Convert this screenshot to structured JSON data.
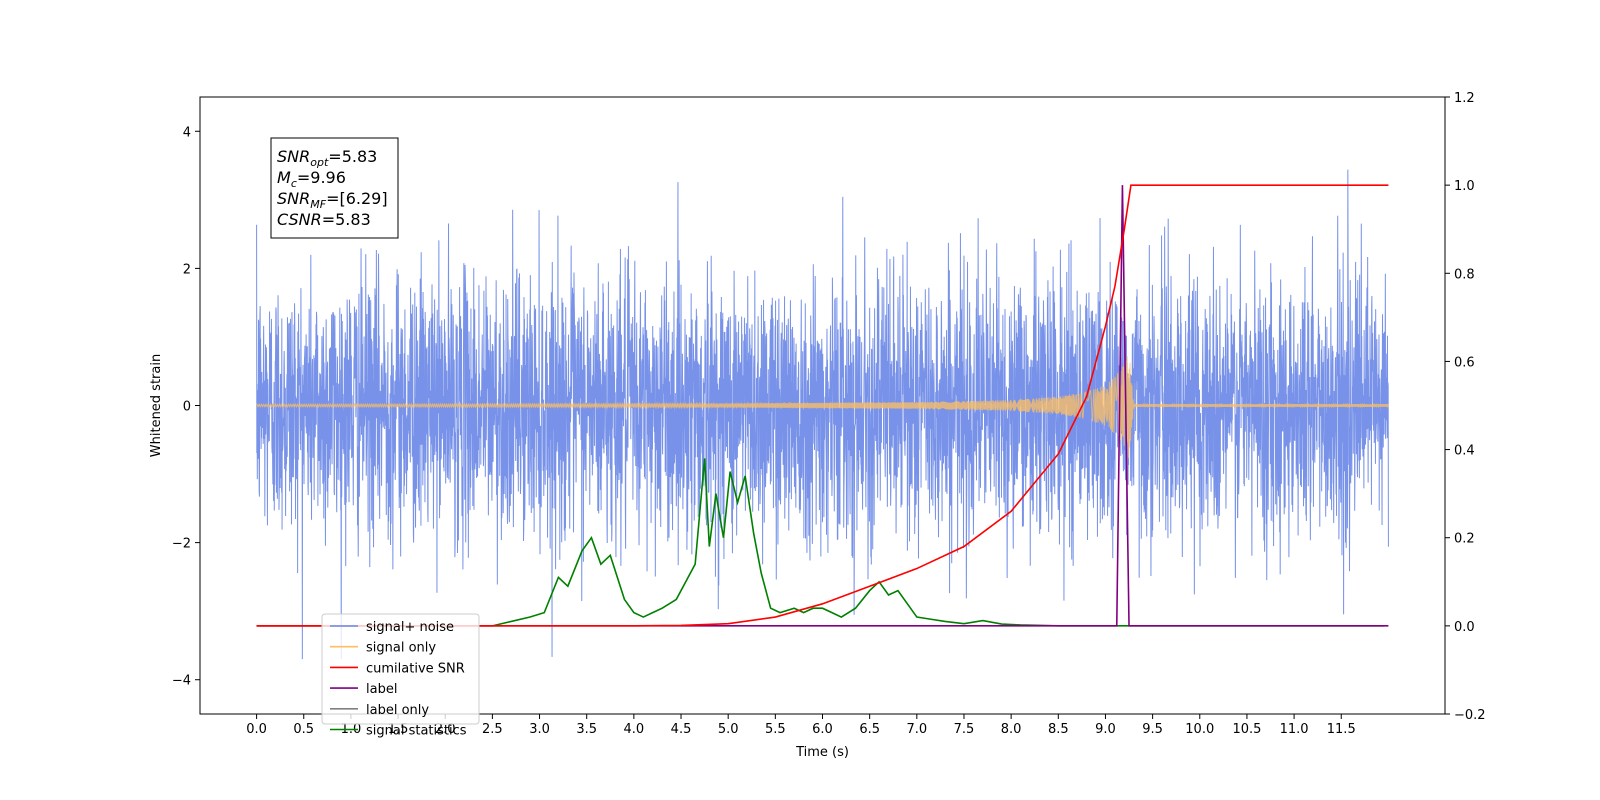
{
  "chart_data": {
    "type": "line",
    "xlabel": "Time (s)",
    "ylabel": "Whitened strain",
    "xlim": [
      -0.6,
      12.6
    ],
    "ylim": [
      -4.5,
      4.5
    ],
    "y2lim": [
      -0.2,
      1.2
    ],
    "x_ticks": [
      "0.0",
      "0.5",
      "1.0",
      "1.5",
      "2.0",
      "2.5",
      "3.0",
      "3.5",
      "4.0",
      "4.5",
      "5.0",
      "5.5",
      "6.0",
      "6.5",
      "7.0",
      "7.5",
      "8.0",
      "8.5",
      "9.0",
      "9.5",
      "10.0",
      "10.5",
      "11.0",
      "11.5"
    ],
    "y_ticks": [
      "4",
      "2",
      "0",
      "−2",
      "−4"
    ],
    "y2_ticks": [
      "1.2",
      "1.0",
      "0.8",
      "0.6",
      "0.4",
      "0.2",
      "0.0",
      "−0.2"
    ],
    "annotation": [
      {
        "base": "SNR",
        "sub": "opt",
        "rest": "=5.83"
      },
      {
        "base": "M",
        "sub": "c",
        "rest": "=9.96"
      },
      {
        "base": "SNR",
        "sub": "MF",
        "rest": "=[6.29]"
      },
      {
        "base": "CSNR",
        "sub": "",
        "rest": "=5.83"
      }
    ],
    "legend_position": "lower-left",
    "series": [
      {
        "name": "signal+ noise",
        "color": "#6b89e6",
        "axis": "left",
        "description": "white noise, roughly ±2 with spikes to ±4, from 0 to 12 s"
      },
      {
        "name": "signal only",
        "color": "#ffbf60",
        "axis": "left",
        "description": "chirp growing until merger at ~9.25 s",
        "envelope": {
          "x": [
            0.0,
            5.0,
            7.0,
            8.0,
            8.5,
            8.8,
            9.0,
            9.1,
            9.2,
            9.25,
            9.3,
            12.0
          ],
          "y": [
            0.02,
            0.03,
            0.05,
            0.08,
            0.13,
            0.2,
            0.3,
            0.42,
            0.6,
            0.8,
            0.02,
            0.02
          ]
        }
      },
      {
        "name": "cumilative SNR",
        "color": "#ff0000",
        "axis": "right",
        "x": [
          0.0,
          4.0,
          4.5,
          5.0,
          5.5,
          6.0,
          6.5,
          7.0,
          7.5,
          8.0,
          8.5,
          8.8,
          9.0,
          9.1,
          9.2,
          9.27,
          9.3,
          12.0
        ],
        "y": [
          0.0,
          0.0,
          0.001,
          0.005,
          0.02,
          0.05,
          0.09,
          0.13,
          0.18,
          0.26,
          0.39,
          0.52,
          0.68,
          0.77,
          0.9,
          1.0,
          1.0,
          1.0
        ]
      },
      {
        "name": "label",
        "color": "#800080",
        "axis": "right",
        "x": [
          0.0,
          9.12,
          9.18,
          9.25,
          12.0
        ],
        "y": [
          0.0,
          0.0,
          1.0,
          0.0,
          0.0
        ]
      },
      {
        "name": "label only",
        "color": "#808080",
        "axis": "right",
        "x": [],
        "y": []
      },
      {
        "name": "signal statistics",
        "color": "#008000",
        "axis": "right",
        "x": [
          0.0,
          2.5,
          2.7,
          2.9,
          3.05,
          3.2,
          3.3,
          3.45,
          3.55,
          3.65,
          3.75,
          3.9,
          4.0,
          4.1,
          4.2,
          4.3,
          4.45,
          4.55,
          4.65,
          4.75,
          4.8,
          4.87,
          4.95,
          5.02,
          5.1,
          5.18,
          5.27,
          5.35,
          5.45,
          5.55,
          5.7,
          5.8,
          5.9,
          6.0,
          6.1,
          6.2,
          6.35,
          6.5,
          6.6,
          6.7,
          6.8,
          6.9,
          7.0,
          7.15,
          7.3,
          7.5,
          7.7,
          7.9,
          8.1,
          8.5,
          9.0,
          11.95
        ],
        "y": [
          0.0,
          0.0,
          0.01,
          0.02,
          0.03,
          0.11,
          0.09,
          0.17,
          0.2,
          0.14,
          0.16,
          0.06,
          0.03,
          0.02,
          0.03,
          0.04,
          0.06,
          0.1,
          0.14,
          0.38,
          0.18,
          0.3,
          0.2,
          0.35,
          0.28,
          0.34,
          0.21,
          0.12,
          0.04,
          0.03,
          0.04,
          0.03,
          0.04,
          0.04,
          0.03,
          0.02,
          0.04,
          0.08,
          0.1,
          0.07,
          0.08,
          0.05,
          0.02,
          0.015,
          0.01,
          0.005,
          0.012,
          0.004,
          0.002,
          0.0,
          0.0,
          0.0
        ]
      }
    ]
  }
}
